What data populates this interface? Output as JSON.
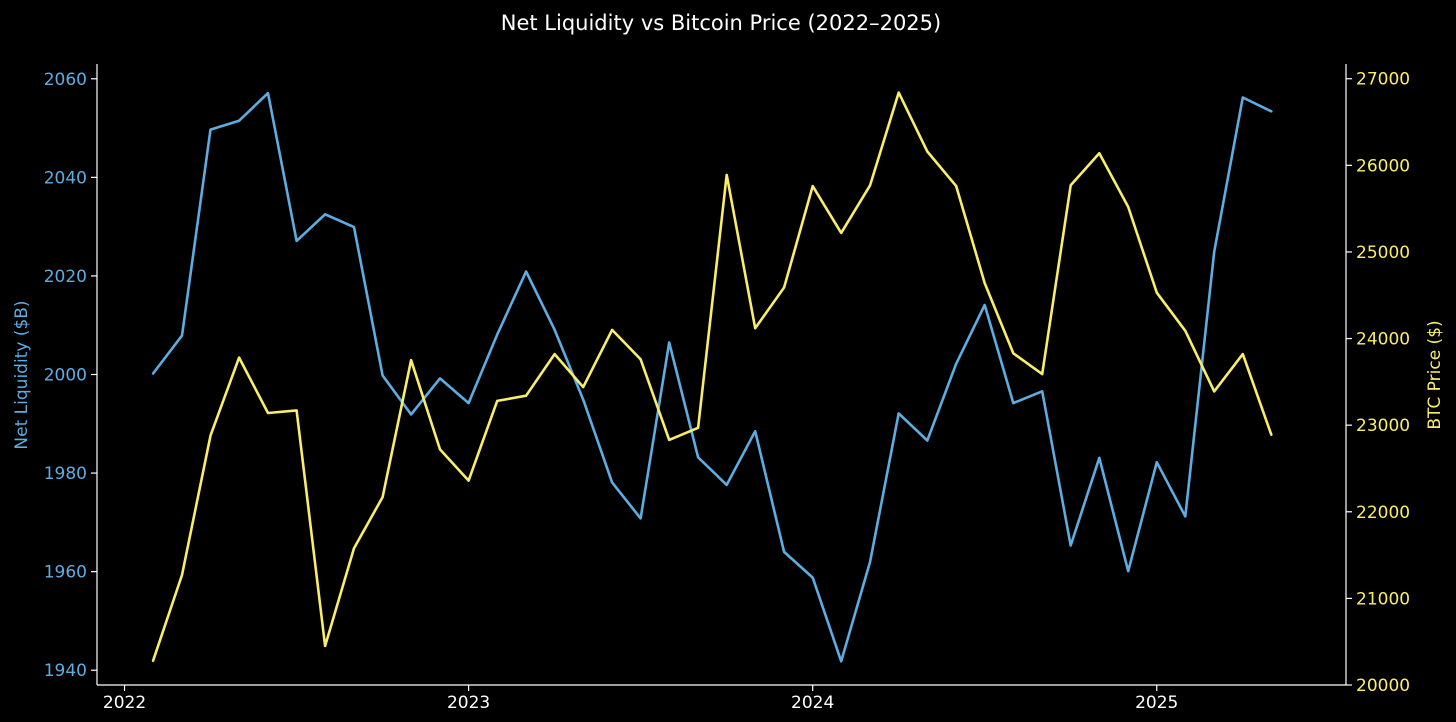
{
  "chart_data": {
    "type": "line",
    "title": "Net Liquidity vs Bitcoin Price (2022–2025)",
    "xlabel": "",
    "y_left_label": "Net Liquidity ($B)",
    "y_right_label": "BTC Price ($)",
    "x_ticks": [
      "2022",
      "2023",
      "2024",
      "2025"
    ],
    "x_range": [
      2021.92,
      2025.55
    ],
    "x": [
      2022.083,
      2022.167,
      2022.25,
      2022.333,
      2022.417,
      2022.5,
      2022.583,
      2022.667,
      2022.75,
      2022.833,
      2022.917,
      2023.0,
      2023.083,
      2023.167,
      2023.25,
      2023.333,
      2023.417,
      2023.5,
      2023.583,
      2023.667,
      2023.75,
      2023.833,
      2023.917,
      2024.0,
      2024.083,
      2024.167,
      2024.25,
      2024.333,
      2024.417,
      2024.5,
      2024.583,
      2024.667,
      2024.75,
      2024.833,
      2024.917,
      2025.0,
      2025.083,
      2025.167,
      2025.25,
      2025.333
    ],
    "y_left_ticks": [
      1940,
      1960,
      1980,
      2000,
      2020,
      2040,
      2060
    ],
    "y_left_range": [
      1937,
      2063
    ],
    "y_right_ticks": [
      20000,
      21000,
      22000,
      23000,
      24000,
      25000,
      26000,
      27000
    ],
    "y_right_range": [
      20000,
      27170
    ],
    "grid": false,
    "series": [
      {
        "name": "Net Liquidity ($B)",
        "axis": "left",
        "color": "#5dade2",
        "values": [
          2000.2,
          2007.9,
          2049.7,
          2051.5,
          2057.1,
          2027.1,
          2032.5,
          2029.9,
          1999.8,
          1991.9,
          1999.2,
          1994.2,
          2008.1,
          2020.9,
          2009.1,
          1994.9,
          1978.1,
          1970.8,
          2006.5,
          1983.2,
          1977.6,
          1988.5,
          1964.0,
          1958.8,
          1941.8,
          1962.0,
          1992.1,
          1986.6,
          2002.2,
          2014.1,
          1994.2,
          1996.6,
          1965.3,
          1983.1,
          1960.1,
          1982.2,
          1971.2,
          2024.9,
          2056.2,
          2053.4
        ]
      },
      {
        "name": "BTC Price ($)",
        "axis": "right",
        "color": "#f9ed69",
        "values": [
          20280,
          21270,
          22880,
          23780,
          23140,
          23170,
          20450,
          21580,
          22170,
          23750,
          22720,
          22360,
          23280,
          23340,
          23820,
          23440,
          24100,
          23760,
          22830,
          22970,
          25890,
          24120,
          24590,
          25760,
          25220,
          25770,
          26840,
          26160,
          25760,
          24640,
          23830,
          23590,
          25770,
          26140,
          25520,
          24530,
          24090,
          23390,
          23820,
          22890
        ]
      }
    ]
  }
}
